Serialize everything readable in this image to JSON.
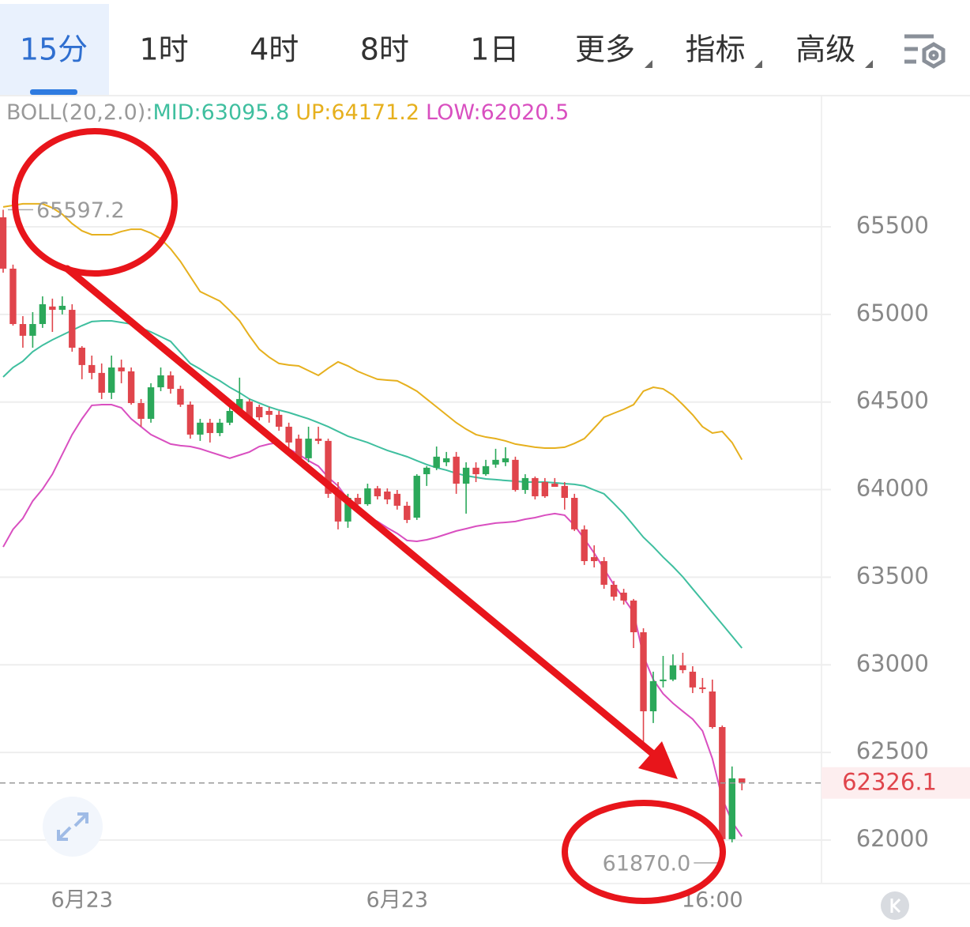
{
  "toolbar": {
    "tabs": [
      "15分",
      "1时",
      "4时",
      "8时",
      "1日",
      "更多",
      "指标",
      "高级"
    ],
    "selected": 0
  },
  "chart_data": {
    "type": "candlestick",
    "indicator": "BOLL(20,2.0):",
    "categories": [
      null,
      null,
      null,
      null,
      null,
      null,
      null,
      null,
      "6月23",
      null,
      null,
      null,
      null,
      null,
      null,
      null,
      null,
      null,
      null,
      null,
      null,
      null,
      null,
      null,
      null,
      null,
      null,
      null,
      null,
      null,
      null,
      null,
      null,
      null,
      null,
      null,
      null,
      null,
      null,
      null,
      "6月23",
      null,
      null,
      null,
      null,
      null,
      null,
      null,
      null,
      null,
      null,
      null,
      null,
      null,
      null,
      null,
      null,
      null,
      null,
      null,
      null,
      null,
      null,
      null,
      null,
      null,
      null,
      null,
      null,
      null,
      null,
      null,
      "16:00",
      null,
      null,
      null
    ],
    "open": [
      65554,
      65261,
      64945,
      64878,
      64945,
      65045,
      65026,
      65026,
      64810,
      64711,
      64666,
      64553,
      64697,
      64675,
      64494,
      64404,
      64584,
      64652,
      64575,
      64485,
      64314,
      64382,
      64323,
      64382,
      64449,
      64503,
      64472,
      64449,
      64427,
      64359,
      64291,
      64179,
      64291,
      64278,
      63976,
      63818,
      63953,
      63917,
      64007,
      63989,
      63976,
      63908,
      63840,
      64088,
      64125,
      64156,
      64188,
      64034,
      64125,
      64088,
      64143,
      64156,
      64170,
      63998,
      64066,
      64043,
      64034,
      64021,
      63953,
      63773,
      63615,
      63592,
      63457,
      63412,
      63367,
      63186,
      62735,
      62907,
      62916,
      62997,
      62961,
      62871,
      62848,
      62645,
      62005,
      62352
    ],
    "high": [
      65597.2,
      65284,
      64990,
      65013,
      65103,
      65090,
      65103,
      65058,
      64819,
      64765,
      64720,
      64765,
      64742,
      64697,
      64517,
      64607,
      64697,
      64675,
      64593,
      64503,
      64404,
      64404,
      64404,
      64494,
      64639,
      64517,
      64485,
      64472,
      64449,
      64382,
      64314,
      64359,
      64359,
      64291,
      64043,
      63976,
      63976,
      64034,
      64021,
      64007,
      63998,
      63931,
      64088,
      64134,
      64246,
      64215,
      64215,
      64156,
      64156,
      64170,
      64233,
      64242,
      64188,
      64088,
      64075,
      64066,
      64066,
      64043,
      63976,
      63796,
      63682,
      63615,
      63479,
      63434,
      63376,
      63209,
      62961,
      63051,
      63060,
      63069,
      62992,
      62925,
      62916,
      62654,
      62420,
      62352
    ],
    "low": [
      65238,
      64936,
      64810,
      64810,
      64923,
      64900,
      65000,
      64787,
      64630,
      64630,
      64517,
      64517,
      64607,
      64485,
      64359,
      64382,
      64562,
      64548,
      64472,
      64291,
      64278,
      64269,
      64305,
      64368,
      64427,
      64382,
      64395,
      64382,
      64336,
      64224,
      64156,
      64156,
      64260,
      63953,
      63773,
      63782,
      63886,
      63908,
      63944,
      63917,
      63886,
      63809,
      63827,
      64021,
      64111,
      64134,
      63976,
      63863,
      64043,
      64079,
      64125,
      64134,
      63989,
      63976,
      63944,
      63953,
      64016,
      63886,
      63764,
      63570,
      63556,
      63434,
      63367,
      63344,
      63096,
      62555,
      62668,
      62871,
      62907,
      62952,
      62839,
      62839,
      62636,
      61870,
      61987,
      62284
    ],
    "close": [
      65261,
      64945,
      64878,
      64945,
      65058,
      65026,
      65049,
      64810,
      64711,
      64666,
      64553,
      64697,
      64675,
      64494,
      64404,
      64584,
      64652,
      64575,
      64485,
      64314,
      64382,
      64323,
      64382,
      64449,
      64517,
      64404,
      64413,
      64427,
      64359,
      64269,
      64179,
      64291,
      64278,
      63976,
      63818,
      63953,
      63917,
      64007,
      63962,
      63944,
      63908,
      63827,
      64079,
      64125,
      64188,
      64179,
      64034,
      64125,
      64088,
      64134,
      64170,
      64179,
      63998,
      64066,
      63962,
      63962,
      64016,
      63953,
      63773,
      63592,
      63592,
      63457,
      63389,
      63367,
      63186,
      62735,
      62907,
      62916,
      62997,
      62970,
      62871,
      62862,
      62645,
      62005,
      62352,
      62326.1
    ],
    "low_label": "61870.0",
    "up_color": "#2ba85a",
    "down_color": "#e0454c",
    "series": [
      {
        "name": "MID:",
        "color": "#3fbf9f",
        "values": [
          64643,
          64697,
          64733,
          64787,
          64824,
          64855,
          64882,
          64909,
          64936,
          64959,
          64963,
          64963,
          64954,
          64945,
          64923,
          64900,
          64873,
          64846,
          64783,
          64720,
          64688,
          64652,
          64621,
          64584,
          64553,
          64517,
          64494,
          64472,
          64454,
          64440,
          64422,
          64404,
          64382,
          64359,
          64332,
          64305,
          64287,
          64269,
          64246,
          64224,
          64206,
          64188,
          64165,
          64143,
          64125,
          64111,
          64093,
          64079,
          64070,
          64061,
          64057,
          64052,
          64048,
          64043,
          64043,
          64043,
          64039,
          64034,
          64030,
          64021,
          63998,
          63976,
          63921,
          63863,
          63796,
          63728,
          63674,
          63615,
          63561,
          63502,
          63434,
          63367,
          63299,
          63232,
          63164,
          63095.8
        ]
      },
      {
        "name": "UP:",
        "color": "#e6b01e",
        "values": [
          65613,
          65622,
          65631,
          65631,
          65631,
          65608,
          65572,
          65518,
          65477,
          65455,
          65455,
          65455,
          65473,
          65486,
          65486,
          65464,
          65432,
          65374,
          65302,
          65216,
          65130,
          65103,
          65076,
          65022,
          64963,
          64878,
          64801,
          64756,
          64720,
          64711,
          64706,
          64679,
          64652,
          64693,
          64729,
          64706,
          64675,
          64652,
          64630,
          64625,
          64621,
          64593,
          64562,
          64517,
          64472,
          64427,
          64382,
          64345,
          64314,
          64300,
          64291,
          64278,
          64260,
          64251,
          64242,
          64237,
          64237,
          64242,
          64264,
          64291,
          64350,
          64413,
          64436,
          64458,
          64485,
          64562,
          64584,
          64575,
          64539,
          64485,
          64427,
          64359,
          64323,
          64332,
          64269,
          64171.2
        ]
      },
      {
        "name": "LOW:",
        "color": "#d94fc0",
        "values": [
          63673,
          63773,
          63836,
          63935,
          64003,
          64088,
          64201,
          64314,
          64404,
          64481,
          64485,
          64485,
          64467,
          64404,
          64359,
          64314,
          64287,
          64260,
          64251,
          64246,
          64233,
          64215,
          64197,
          64179,
          64197,
          64215,
          64246,
          64260,
          64269,
          64233,
          64201,
          64165,
          64134,
          64070,
          64021,
          63944,
          63872,
          63845,
          63818,
          63782,
          63750,
          63710,
          63705,
          63714,
          63728,
          63746,
          63764,
          63777,
          63791,
          63800,
          63809,
          63813,
          63818,
          63831,
          63840,
          63854,
          63863,
          63854,
          63796,
          63719,
          63638,
          63548,
          63457,
          63380,
          63299,
          63051,
          62916,
          62835,
          62781,
          62735,
          62690,
          62623,
          62465,
          62239,
          62104,
          62020.5
        ]
      }
    ],
    "ylim": [
      61752,
      66244
    ],
    "yticks": [
      62000,
      62500,
      63000,
      63500,
      64000,
      64500,
      65000,
      65500
    ],
    "grid": true
  }
}
